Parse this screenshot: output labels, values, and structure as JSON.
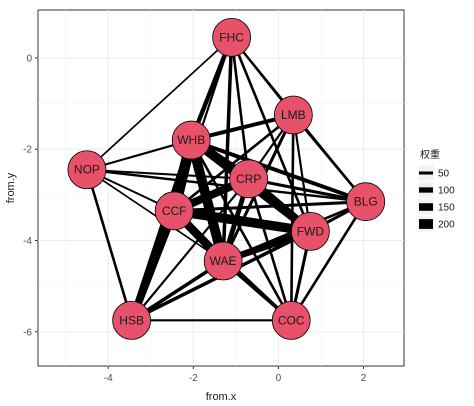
{
  "chart_data": {
    "type": "network",
    "xlabel": "from.x",
    "ylabel": "from.y",
    "xlim": [
      -5.65,
      2.95
    ],
    "ylim": [
      -6.75,
      1.05
    ],
    "x_ticks": [
      -4,
      -2,
      0,
      2
    ],
    "x_tick_labels": [
      "-4",
      "-2",
      "0",
      "2"
    ],
    "y_ticks": [
      0,
      -2,
      -4,
      -6
    ],
    "y_tick_labels": [
      "0",
      "-2",
      "-4",
      "-6"
    ],
    "grid": true,
    "node_fill": "#e8516a",
    "edge_color": "#000000",
    "nodes": [
      {
        "name": "FHC",
        "x": -1.1,
        "y": 0.45
      },
      {
        "name": "LMB",
        "x": 0.35,
        "y": -1.25
      },
      {
        "name": "WHB",
        "x": -2.05,
        "y": -1.8
      },
      {
        "name": "NOP",
        "x": -4.5,
        "y": -2.45
      },
      {
        "name": "CRP",
        "x": -0.7,
        "y": -2.65
      },
      {
        "name": "BLG",
        "x": 2.05,
        "y": -3.15
      },
      {
        "name": "CCF",
        "x": -2.45,
        "y": -3.35
      },
      {
        "name": "FWD",
        "x": 0.75,
        "y": -3.8
      },
      {
        "name": "WAE",
        "x": -1.3,
        "y": -4.45
      },
      {
        "name": "HSB",
        "x": -3.45,
        "y": -5.75
      },
      {
        "name": "COC",
        "x": 0.3,
        "y": -5.75
      }
    ],
    "edges": [
      {
        "from": "WHB",
        "to": "CCF",
        "weight": 220
      },
      {
        "from": "WHB",
        "to": "WAE",
        "weight": 200
      },
      {
        "from": "WHB",
        "to": "CRP",
        "weight": 180
      },
      {
        "from": "CCF",
        "to": "FWD",
        "weight": 190
      },
      {
        "from": "CCF",
        "to": "CRP",
        "weight": 160
      },
      {
        "from": "CCF",
        "to": "WAE",
        "weight": 170
      },
      {
        "from": "CRP",
        "to": "FWD",
        "weight": 170
      },
      {
        "from": "WHB",
        "to": "FWD",
        "weight": 140
      },
      {
        "from": "CCF",
        "to": "HSB",
        "weight": 150
      },
      {
        "from": "WAE",
        "to": "FWD",
        "weight": 130
      },
      {
        "from": "WHB",
        "to": "HSB",
        "weight": 110
      },
      {
        "from": "WAE",
        "to": "HSB",
        "weight": 60
      },
      {
        "from": "CRP",
        "to": "WAE",
        "weight": 90
      },
      {
        "from": "FHC",
        "to": "WHB",
        "weight": 80
      },
      {
        "from": "FHC",
        "to": "WAE",
        "weight": 60
      },
      {
        "from": "FHC",
        "to": "FWD",
        "weight": 40
      },
      {
        "from": "FHC",
        "to": "CRP",
        "weight": 40
      },
      {
        "from": "FHC",
        "to": "LMB",
        "weight": 30
      },
      {
        "from": "FHC",
        "to": "BLG",
        "weight": 25
      },
      {
        "from": "LMB",
        "to": "WHB",
        "weight": 70
      },
      {
        "from": "LMB",
        "to": "WAE",
        "weight": 50
      },
      {
        "from": "LMB",
        "to": "COC",
        "weight": 40
      },
      {
        "from": "LMB",
        "to": "BLG",
        "weight": 40
      },
      {
        "from": "LMB",
        "to": "CCF",
        "weight": 40
      },
      {
        "from": "LMB",
        "to": "CRP",
        "weight": 30
      },
      {
        "from": "WHB",
        "to": "BLG",
        "weight": 70
      },
      {
        "from": "WHB",
        "to": "NOP",
        "weight": 30
      },
      {
        "from": "WHB",
        "to": "COC",
        "weight": 40
      },
      {
        "from": "NOP",
        "to": "BLG",
        "weight": 35
      },
      {
        "from": "NOP",
        "to": "CCF",
        "weight": 25
      },
      {
        "from": "NOP",
        "to": "CRP",
        "weight": 25
      },
      {
        "from": "NOP",
        "to": "WAE",
        "weight": 20
      },
      {
        "from": "NOP",
        "to": "HSB",
        "weight": 40
      },
      {
        "from": "NOP",
        "to": "FHC",
        "weight": 20
      },
      {
        "from": "CRP",
        "to": "BLG",
        "weight": 50
      },
      {
        "from": "CRP",
        "to": "COC",
        "weight": 40
      },
      {
        "from": "CRP",
        "to": "HSB",
        "weight": 30
      },
      {
        "from": "CCF",
        "to": "BLG",
        "weight": 50
      },
      {
        "from": "CCF",
        "to": "COC",
        "weight": 40
      },
      {
        "from": "BLG",
        "to": "FWD",
        "weight": 50
      },
      {
        "from": "BLG",
        "to": "COC",
        "weight": 40
      },
      {
        "from": "BLG",
        "to": "WAE",
        "weight": 40
      },
      {
        "from": "FWD",
        "to": "COC",
        "weight": 50
      },
      {
        "from": "FWD",
        "to": "HSB",
        "weight": 60
      },
      {
        "from": "WAE",
        "to": "COC",
        "weight": 60
      },
      {
        "from": "HSB",
        "to": "COC",
        "weight": 30
      },
      {
        "from": "LMB",
        "to": "FWD",
        "weight": 30
      },
      {
        "from": "FHC",
        "to": "CCF",
        "weight": 30
      }
    ],
    "legend": {
      "title": "权重",
      "position": "right",
      "entries": [
        {
          "label": "50",
          "weight": 50
        },
        {
          "label": "100",
          "weight": 100
        },
        {
          "label": "150",
          "weight": 150
        },
        {
          "label": "200",
          "weight": 200
        }
      ]
    }
  }
}
